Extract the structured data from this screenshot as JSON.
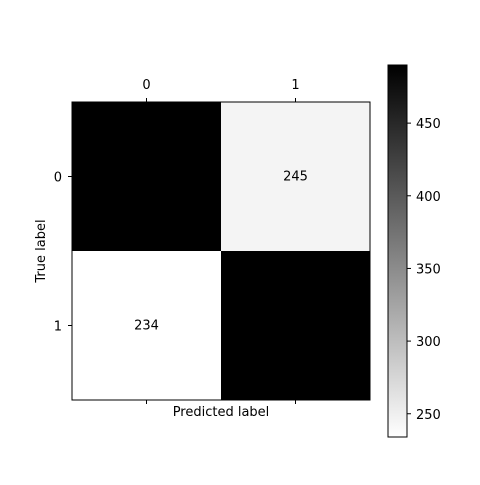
{
  "chart_data": {
    "type": "heatmap",
    "title": "",
    "xlabel": "Predicted label",
    "ylabel": "True label",
    "x_categories": [
      "0",
      "1"
    ],
    "y_categories": [
      "0",
      "1"
    ],
    "values": [
      [
        490,
        245
      ],
      [
        234,
        490
      ]
    ],
    "cell_labels": [
      [
        "",
        "245"
      ],
      [
        "234",
        ""
      ]
    ],
    "colormap": "gray_r",
    "color_min": 234,
    "color_max": 490,
    "colorbar_ticks": [
      "250",
      "300",
      "350",
      "400",
      "450"
    ],
    "colorbar_tick_values": [
      250,
      300,
      350,
      400,
      450
    ]
  }
}
